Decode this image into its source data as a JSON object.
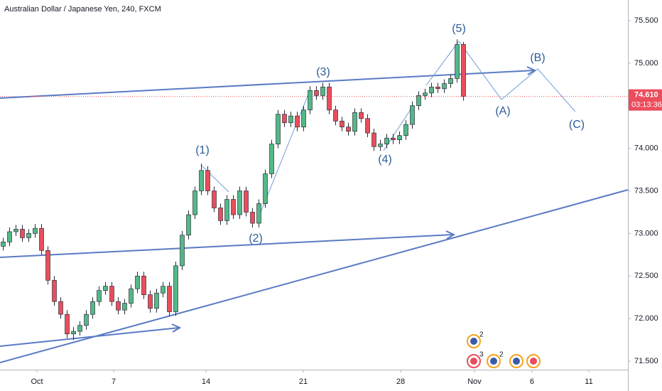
{
  "chart_data": {
    "type": "candlestick",
    "title": "Australian Dollar / Japanese Yen, 240, FXCM",
    "up_color": "#53b987",
    "down_color": "#eb4d5c",
    "open": [
      72.85,
      72.9,
      73.02,
      73.05,
      72.95,
      73.0,
      73.06,
      72.8,
      72.45,
      72.2,
      72.05,
      71.82,
      71.85,
      71.92,
      72.05,
      72.2,
      72.33,
      72.38,
      72.2,
      72.1,
      72.18,
      72.35,
      72.5,
      72.28,
      72.12,
      72.3,
      72.38,
      72.08,
      72.62,
      72.98,
      73.22,
      73.5,
      73.74,
      73.5,
      73.3,
      73.15,
      73.4,
      73.22,
      73.5,
      73.25,
      73.12,
      73.35,
      73.7,
      74.05,
      74.4,
      74.3,
      74.38,
      74.25,
      74.45,
      74.68,
      74.62,
      74.72,
      74.45,
      74.32,
      74.25,
      74.2,
      74.42,
      74.35,
      74.18,
      74.02,
      74.05,
      74.12,
      74.1,
      74.15,
      74.28,
      74.5,
      74.62,
      74.65,
      74.72,
      74.7,
      74.76,
      74.82,
      75.22
    ],
    "high": [
      72.95,
      73.07,
      73.1,
      73.1,
      73.05,
      73.11,
      73.11,
      72.85,
      72.5,
      72.25,
      72.1,
      71.9,
      71.97,
      72.1,
      72.25,
      72.38,
      72.43,
      72.43,
      72.25,
      72.23,
      72.4,
      72.55,
      72.55,
      72.33,
      72.35,
      72.43,
      72.43,
      72.67,
      73.03,
      73.27,
      73.55,
      73.82,
      73.79,
      73.55,
      73.35,
      73.45,
      73.45,
      73.55,
      73.55,
      73.3,
      73.4,
      73.75,
      74.1,
      74.45,
      74.45,
      74.43,
      74.43,
      74.5,
      74.73,
      74.73,
      74.77,
      74.77,
      74.5,
      74.37,
      74.3,
      74.47,
      74.47,
      74.4,
      74.23,
      74.1,
      74.17,
      74.17,
      74.2,
      74.33,
      74.55,
      74.67,
      74.7,
      74.77,
      74.77,
      74.81,
      74.87,
      75.28,
      75.25
    ],
    "low": [
      72.8,
      72.85,
      72.97,
      72.9,
      72.9,
      72.95,
      72.75,
      72.4,
      72.15,
      72.0,
      71.77,
      71.75,
      71.8,
      71.87,
      72.0,
      72.15,
      72.28,
      72.15,
      72.05,
      72.05,
      72.13,
      72.3,
      72.23,
      72.07,
      72.07,
      72.25,
      72.03,
      72.03,
      72.57,
      72.93,
      73.17,
      73.45,
      73.45,
      73.25,
      73.1,
      73.1,
      73.17,
      73.17,
      73.2,
      73.07,
      73.07,
      73.3,
      73.65,
      74.0,
      74.25,
      74.25,
      74.2,
      74.2,
      74.4,
      74.57,
      74.57,
      74.4,
      74.27,
      74.2,
      74.15,
      74.15,
      74.3,
      74.13,
      73.97,
      73.97,
      74.0,
      74.05,
      74.05,
      74.1,
      74.23,
      74.45,
      74.57,
      74.6,
      74.65,
      74.65,
      74.71,
      74.77,
      74.56
    ],
    "close": [
      72.9,
      73.02,
      73.05,
      72.95,
      73.0,
      73.06,
      72.8,
      72.45,
      72.2,
      72.05,
      71.82,
      71.85,
      71.92,
      72.05,
      72.2,
      72.33,
      72.38,
      72.2,
      72.1,
      72.18,
      72.35,
      72.5,
      72.28,
      72.12,
      72.3,
      72.38,
      72.08,
      72.62,
      72.98,
      73.22,
      73.5,
      73.74,
      73.5,
      73.3,
      73.15,
      73.4,
      73.22,
      73.5,
      73.25,
      73.12,
      73.35,
      73.7,
      74.05,
      74.4,
      74.3,
      74.38,
      74.25,
      74.45,
      74.68,
      74.62,
      74.72,
      74.45,
      74.32,
      74.25,
      74.2,
      74.42,
      74.35,
      74.18,
      74.02,
      74.05,
      74.12,
      74.1,
      74.15,
      74.28,
      74.5,
      74.62,
      74.65,
      74.72,
      74.7,
      74.76,
      74.82,
      75.22,
      74.61
    ],
    "xlim": [
      -0.5,
      97.72
    ],
    "xticks": [
      {
        "value": 5.28,
        "label": "Oct"
      },
      {
        "value": 17.28,
        "label": "7"
      },
      {
        "value": 31.72,
        "label": "14"
      },
      {
        "value": 46.94,
        "label": "21"
      },
      {
        "value": 62.17,
        "label": "28"
      },
      {
        "value": 73.72,
        "label": "Nov"
      },
      {
        "value": 82.72,
        "label": "6"
      },
      {
        "value": 91.61,
        "label": "11"
      }
    ],
    "ylim": [
      71.4,
      75.742
    ],
    "yticks": [
      {
        "value": 71.5,
        "label": "71.500"
      },
      {
        "value": 72,
        "label": "72.000"
      },
      {
        "value": 72.5,
        "label": "72.500"
      },
      {
        "value": 73,
        "label": "73.000"
      },
      {
        "value": 73.5,
        "label": "73.500"
      },
      {
        "value": 74,
        "label": "74.000"
      },
      {
        "value": 75,
        "label": "75.000"
      },
      {
        "value": 75.5,
        "label": "75.500"
      }
    ],
    "last_price": {
      "value": 74.61,
      "label": "74.610"
    },
    "countdown": "03:13:36",
    "annotations": [
      "(1)",
      "(2)",
      "(3)",
      "(4)",
      "(5)",
      "(A)",
      "(B)",
      "(C)"
    ],
    "events": [
      "2",
      "3",
      "2"
    ]
  }
}
